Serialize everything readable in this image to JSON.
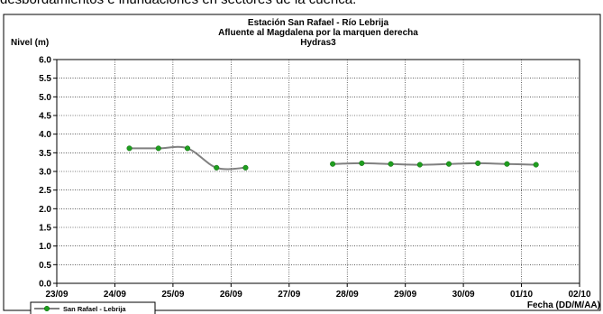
{
  "page": {
    "top_text": "desbordamientos e inundaciones en sectores de la cuenca."
  },
  "chart_data": {
    "type": "line",
    "title": [
      "Estación San Rafael - Río Lebrija",
      "Afluente al Magdalena por la marquen derecha",
      "Hydras3"
    ],
    "ylabel": "Nivel (m)",
    "xlabel": "Fecha (DD/M/AA)",
    "ylim": [
      0,
      6
    ],
    "yticks": [
      "0.0",
      "0.5",
      "1.0",
      "1.5",
      "2.0",
      "2.5",
      "3.0",
      "3.5",
      "4.0",
      "4.5",
      "5.0",
      "5.5",
      "6.0"
    ],
    "xlim": [
      0,
      9
    ],
    "xticks": [
      "23/09",
      "24/09",
      "25/09",
      "26/09",
      "27/09",
      "28/09",
      "29/09",
      "30/09",
      "01/10",
      "02/10"
    ],
    "grid": true,
    "legend_position": "bottom-left",
    "series": [
      {
        "name": "San Rafael - Lebrija",
        "color": "#808080",
        "marker_color": "#1f9e1f",
        "segments": [
          [
            [
              1.25,
              3.62
            ],
            [
              1.75,
              3.62
            ],
            [
              2.25,
              3.62
            ],
            [
              2.75,
              3.1
            ],
            [
              3.25,
              3.1
            ]
          ],
          [
            [
              4.75,
              3.2
            ],
            [
              5.25,
              3.22
            ],
            [
              5.75,
              3.2
            ],
            [
              6.25,
              3.18
            ],
            [
              6.75,
              3.2
            ],
            [
              7.25,
              3.22
            ],
            [
              7.75,
              3.2
            ],
            [
              8.25,
              3.18
            ]
          ]
        ]
      }
    ]
  }
}
